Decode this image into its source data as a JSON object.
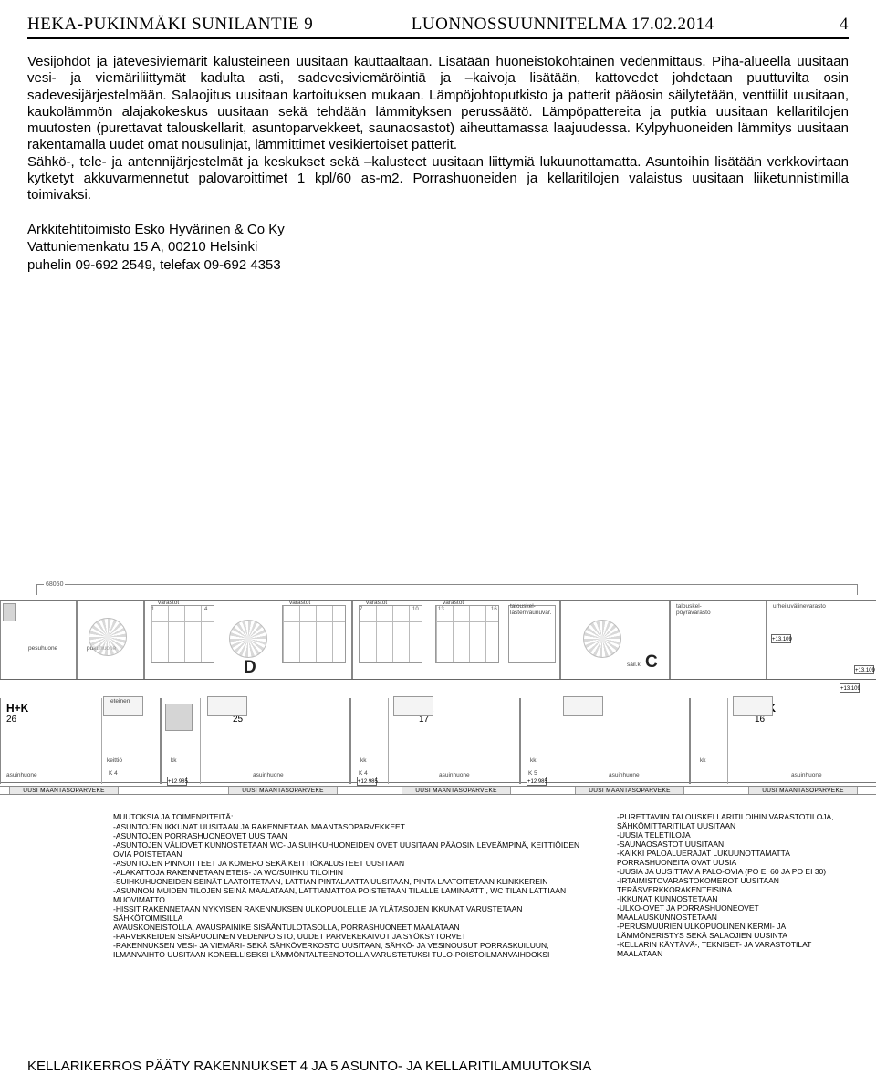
{
  "header": {
    "left": "HEKA-PUKINMÄKI SUNILANTIE 9",
    "center": "LUONNOSSUUNNITELMA 17.02.2014",
    "page": "4"
  },
  "body": {
    "p1": "Vesijohdot ja jätevesiviemärit kalusteineen uusitaan kauttaaltaan. Lisätään huoneistokohtainen vedenmittaus. Piha-alueella uusitaan vesi- ja viemäriliittymät kadulta asti, sadevesiviemäröintiä ja –kaivoja lisätään, kattovedet johdetaan puuttuvilta osin sadevesijärjestelmään. Salaojitus uusitaan kartoituksen mukaan. Lämpöjohtoputkisto ja patterit pääosin säilytetään, venttiilit uusitaan, kaukolämmön alajakokeskus uusitaan sekä tehdään lämmityksen perussäätö. Lämpöpattereita ja putkia uusitaan kellaritilojen muutosten (purettavat talouskellarit, asuntoparvekkeet, saunaosastot) aiheuttamassa laajuudessa. Kylpyhuoneiden lämmitys uusitaan rakentamalla uudet omat nousulinjat, lämmittimet vesikiertoiset patterit.",
    "p2": "Sähkö-, tele- ja antennijärjestelmät ja keskukset sekä –kalusteet uusitaan liittymiä lukuunottamatta. Asuntoihin lisätään verkkovirtaan kytketyt akkuvarmennetut palovaroittimet 1 kpl/60 as-m2. Porrashuoneiden ja kellaritilojen valaistus uusitaan liiketunnistimilla toimivaksi."
  },
  "signature": {
    "line1": "Arkkitehtitoimisto Esko Hyvärinen & Co Ky",
    "line2": "Vattuniemenkatu  15 A,      00210  Helsinki",
    "line3": "puhelin 09-692 2549,   telefax 09-692 4353"
  },
  "plan": {
    "dim_overall": "68050",
    "upper": {
      "pesuhuone": "pesuhuone",
      "pukuhuone": "pukuhuone",
      "varastot": "varastot",
      "talouskel": "talouskel-\\nlastenvaunuvar.",
      "poyravarasto": "talouskel-\\npöyrävarasto",
      "urheiluvalinevarasto": "urheiluvälinevarasto",
      "letter_D": "D",
      "letter_C": "C",
      "po_labels": [
        "PO E15/60",
        "PO E15/60",
        "PO E24/60",
        "PO E24/60",
        "PO E24/60"
      ],
      "store_nums_top": [
        "1",
        "4",
        "",
        "7",
        "10",
        "",
        "13",
        "16",
        ""
      ],
      "store_nums_mid": [
        "2",
        "5",
        "",
        "8",
        "11",
        "",
        "14",
        "17",
        ""
      ],
      "store_nums_bot": [
        "3",
        "6",
        "",
        "9",
        "12",
        "",
        "15",
        "18",
        ""
      ],
      "wc": "wc",
      "sailk": "säil.k"
    },
    "units": [
      {
        "hk": "H+K",
        "area": "26"
      },
      {
        "hk": "H+K",
        "area": "25"
      },
      {
        "hk": "H+K",
        "area": "17"
      },
      {
        "hk": "H+K",
        "area": ""
      },
      {
        "hk": "H+KK",
        "area": "16"
      }
    ],
    "unit_rooms": {
      "asuinhuone": "asuinhuone",
      "keittio": "keittiö",
      "kk": "kk",
      "K4": "K 4",
      "K5": "K 5",
      "eteinen": "eteinen"
    },
    "elev_marks": [
      "+12.985",
      "+12.985",
      "+12.985",
      "+13.109",
      "+13.109",
      "+13.109"
    ],
    "lower_bar_label": "UUSI MAANTASOPARVEKE",
    "notes_title": "MUUTOKSIA JA TOIMENPITEITÄ:",
    "notes_col1": [
      "-ASUNTOJEN IKKUNAT UUSITAAN JA RAKENNETAAN MAANTASOPARVEKKEET",
      "-ASUNTOJEN PORRASHUONEOVET UUSITAAN",
      "-ASUNTOJEN VÄLIOVET KUNNOSTETAAN WC- JA SUIHKUHUONEIDEN OVET UUSITAAN PÄÄOSIN LEVEÄMPINÄ, KEITTIÖIDEN OVIA POISTETAAN",
      "-ASUNTOJEN PINNOITTEET JA KOMERO SEKÄ KEITTIÖKALUSTEET UUSITAAN",
      "-ALAKATTOJA RAKENNETAAN ETEIS- JA WC/SUIHKU TILOIHIN",
      "-SUIHKUHUONEIDEN SEINÄT LAATOITETAAN, LATTIAN PINTALAATTA UUSITAAN, PINTA LAATOITETAAN KLINKKEREIN",
      "-ASUNNON MUIDEN TILOJEN SEINÄ MAALATAAN, LATTIAMATTOA POISTETAAN TILALLE LAMINAATTI, WC TILAN LATTIAAN MUOVIMATTO",
      "-HISSIT RAKENNETAAN NYKYISEN RAKENNUKSEN ULKOPUOLELLE JA YLÄTASOJEN IKKUNAT VARUSTETAAN SÄHKÖTOIMISILLA",
      " AVAUSKONEISTOLLA, AVAUSPAINIKE SISÄÄNTULOTASOLLA, PORRASHUONEET MAALATAAN",
      "-PARVEKKEIDEN SISÄPUOLINEN VEDENPOISTO, UUDET PARVEKEKAIVOT JA SYÖKSYTORVET",
      "-RAKENNUKSEN VESI- JA VIEMÄRI- SEKÄ SÄHKÖVERKOSTO UUSITAAN, SÄHKÖ- JA VESINOUSUT PORRASKUILUUN,",
      " ILMANVAIHTO UUSITAAN KONEELLISEKSI LÄMMÖNTALTEENOTOLLA VARUSTETUKSI TULO-POISTOILMANVAIHDOKSI"
    ],
    "notes_col2": [
      "-PURETTAVIIN TALOUSKELLARITILOIHIN VARASTOTILOJA, SÄHKÖMITTARITILAT UUSITAAN",
      "-UUSIA TELETILOJA",
      "-SAUNAOSASTOT UUSITAAN",
      "-KAIKKI PALOALUERAJAT LUKUUNOTTAMATTA PORRASHUONEITA OVAT UUSIA",
      "-UUSIA JA UUSITTAVIA PALO-OVIA (PO EI 60 JA PO EI 30)",
      "-IRTAIMISTOVARASTOKOMEROT UUSITAAN TERÄSVERKKORAKENTEISINA",
      "-IKKUNAT KUNNOSTETAAN",
      "-ULKO-OVET JA PORRASHUONEOVET MAALAUSKUNNOSTETAAN",
      "-PERUSMUURIEN ULKOPUOLINEN KERMI- JA LÄMMÖNERISTYS SEKÄ SALAOJIEN UUSINTA",
      "-KELLARIN KÄYTÄVÄ-, TEKNISET- JA VARASTOTILAT MAALATAAN"
    ]
  },
  "footer": "KELLARIKERROS PÄÄTY RAKENNUKSET  4  JA 5 ASUNTO- JA KELLARITILAMUUTOKSIA"
}
